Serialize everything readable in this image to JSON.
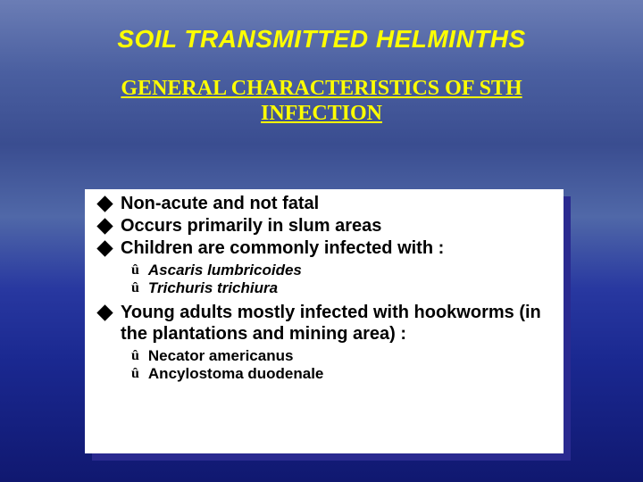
{
  "title": "SOIL TRANSMITTED HELMINTHS",
  "subtitle_line1": "GENERAL CHARACTERISTICS OF STH",
  "subtitle_line2": "INFECTION",
  "bullets": {
    "b1": "Non-acute and not fatal",
    "b2": "Occurs primarily in slum areas",
    "b3": "Children are commonly infected with :",
    "b4": "Young adults mostly infected with hookworms (in the plantations and mining area) :"
  },
  "sub_children": {
    "s1": "Ascaris lumbricoides",
    "s2": "Trichuris trichiura"
  },
  "sub_adults": {
    "s1": "Necator americanus",
    "s2": "Ancylostoma duodenale"
  },
  "colors": {
    "title_color": "#ffff00",
    "box_bg": "#ffffff",
    "shadow_bg": "#2a2a90",
    "text_color": "#000000"
  },
  "typography": {
    "title_fontsize": 28,
    "subtitle_fontsize": 24,
    "bullet_fontsize": 20,
    "sub_fontsize": 17
  }
}
